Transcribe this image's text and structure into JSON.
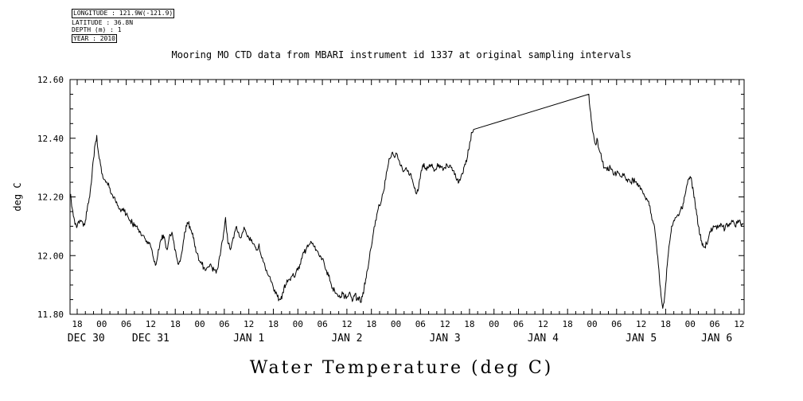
{
  "meta": {
    "longitude": "LONGITUDE : 121.9W(-121.9)",
    "latitude": "LATITUDE : 36.8N",
    "depth": "DEPTH (m) : 1",
    "year": "YEAR : 2010"
  },
  "title": "Mooring MO CTD data from MBARI instrument id 1337 at original sampling intervals",
  "xlabel": "Water Temperature (deg C)",
  "chart_data": {
    "type": "line",
    "title": "Mooring MO CTD data from MBARI instrument id 1337 at original sampling intervals",
    "ylabel": "deg C",
    "xlabel": "Water Temperature (deg C)",
    "x_unit": "hours since DEC 30 00:00",
    "xlim": [
      16.25,
      181.2
    ],
    "ylim": [
      11.8,
      12.6
    ],
    "y_minor_step": 0.05,
    "x_minor_step": 2,
    "yticks": [
      {
        "value": 11.8,
        "label": "11.80"
      },
      {
        "value": 12.0,
        "label": "12.00"
      },
      {
        "value": 12.2,
        "label": "12.20"
      },
      {
        "value": 12.4,
        "label": "12.40"
      },
      {
        "value": 12.6,
        "label": "12.60"
      }
    ],
    "xticks": [
      {
        "hour": 18,
        "label": "18"
      },
      {
        "hour": 24,
        "label": "00"
      },
      {
        "hour": 30,
        "label": "06"
      },
      {
        "hour": 36,
        "label": "12"
      },
      {
        "hour": 42,
        "label": "18"
      },
      {
        "hour": 48,
        "label": "00"
      },
      {
        "hour": 54,
        "label": "06"
      },
      {
        "hour": 60,
        "label": "12"
      },
      {
        "hour": 66,
        "label": "18"
      },
      {
        "hour": 72,
        "label": "00"
      },
      {
        "hour": 78,
        "label": "06"
      },
      {
        "hour": 84,
        "label": "12"
      },
      {
        "hour": 90,
        "label": "18"
      },
      {
        "hour": 96,
        "label": "00"
      },
      {
        "hour": 102,
        "label": "06"
      },
      {
        "hour": 108,
        "label": "12"
      },
      {
        "hour": 114,
        "label": "18"
      },
      {
        "hour": 120,
        "label": "00"
      },
      {
        "hour": 126,
        "label": "06"
      },
      {
        "hour": 132,
        "label": "12"
      },
      {
        "hour": 138,
        "label": "18"
      },
      {
        "hour": 144,
        "label": "00"
      },
      {
        "hour": 150,
        "label": "06"
      },
      {
        "hour": 156,
        "label": "12"
      },
      {
        "hour": 162,
        "label": "18"
      },
      {
        "hour": 168,
        "label": "00"
      },
      {
        "hour": 174,
        "label": "06"
      },
      {
        "hour": 180,
        "label": "12"
      }
    ],
    "date_labels": [
      {
        "hour": 20.2,
        "label": "DEC 30"
      },
      {
        "hour": 36,
        "label": "DEC 31"
      },
      {
        "hour": 60,
        "label": "JAN 1"
      },
      {
        "hour": 84,
        "label": "JAN 2"
      },
      {
        "hour": 108,
        "label": "JAN 3"
      },
      {
        "hour": 132,
        "label": "JAN 4"
      },
      {
        "hour": 156,
        "label": "JAN 5"
      },
      {
        "hour": 174.5,
        "label": "JAN 6"
      }
    ],
    "series": {
      "name": "water-temperature",
      "units": "deg C",
      "gap": [
        115,
        143.2
      ],
      "noise_amplitude": 0.011,
      "noise_step": 0.15,
      "points": [
        [
          16.4,
          12.21
        ],
        [
          16.8,
          12.16
        ],
        [
          17.2,
          12.13
        ],
        [
          17.6,
          12.11
        ],
        [
          18,
          12.1
        ],
        [
          18.5,
          12.11
        ],
        [
          19,
          12.12
        ],
        [
          19.5,
          12.1
        ],
        [
          20,
          12.12
        ],
        [
          20.4,
          12.15
        ],
        [
          20.8,
          12.18
        ],
        [
          21.2,
          12.22
        ],
        [
          21.6,
          12.27
        ],
        [
          22,
          12.33
        ],
        [
          22.4,
          12.38
        ],
        [
          22.8,
          12.41
        ],
        [
          23.1,
          12.36
        ],
        [
          23.4,
          12.33
        ],
        [
          23.7,
          12.31
        ],
        [
          24,
          12.28
        ],
        [
          24.5,
          12.26
        ],
        [
          25,
          12.25
        ],
        [
          25.5,
          12.24
        ],
        [
          26,
          12.23
        ],
        [
          26.5,
          12.21
        ],
        [
          27,
          12.2
        ],
        [
          27.5,
          12.18
        ],
        [
          28,
          12.17
        ],
        [
          28.5,
          12.16
        ],
        [
          29,
          12.16
        ],
        [
          29.5,
          12.15
        ],
        [
          30,
          12.14
        ],
        [
          30.5,
          12.13
        ],
        [
          31,
          12.12
        ],
        [
          31.5,
          12.11
        ],
        [
          32,
          12.1
        ],
        [
          32.5,
          12.1
        ],
        [
          33,
          12.09
        ],
        [
          33.5,
          12.08
        ],
        [
          34,
          12.07
        ],
        [
          34.5,
          12.06
        ],
        [
          35,
          12.05
        ],
        [
          35.5,
          12.04
        ],
        [
          36,
          12.03
        ],
        [
          36.5,
          12.0
        ],
        [
          37,
          11.98
        ],
        [
          37.3,
          11.97
        ],
        [
          37.6,
          11.99
        ],
        [
          38,
          12.02
        ],
        [
          38.4,
          12.05
        ],
        [
          38.8,
          12.07
        ],
        [
          39.2,
          12.06
        ],
        [
          39.6,
          12.04
        ],
        [
          40,
          12.02
        ],
        [
          40.4,
          12.05
        ],
        [
          40.8,
          12.07
        ],
        [
          41.2,
          12.08
        ],
        [
          41.6,
          12.05
        ],
        [
          42,
          12.02
        ],
        [
          42.4,
          11.99
        ],
        [
          42.8,
          11.97
        ],
        [
          43.2,
          11.98
        ],
        [
          43.6,
          12.01
        ],
        [
          44,
          12.05
        ],
        [
          44.4,
          12.08
        ],
        [
          44.8,
          12.1
        ],
        [
          45.2,
          12.11
        ],
        [
          45.6,
          12.1
        ],
        [
          46,
          12.08
        ],
        [
          46.4,
          12.06
        ],
        [
          46.8,
          12.03
        ],
        [
          47.2,
          12.01
        ],
        [
          47.6,
          12.0
        ],
        [
          48,
          11.98
        ],
        [
          48.5,
          11.97
        ],
        [
          49,
          11.96
        ],
        [
          49.5,
          11.95
        ],
        [
          50,
          11.96
        ],
        [
          50.5,
          11.97
        ],
        [
          51,
          11.96
        ],
        [
          51.5,
          11.95
        ],
        [
          52,
          11.94
        ],
        [
          52.5,
          11.96
        ],
        [
          53,
          12.0
        ],
        [
          53.5,
          12.05
        ],
        [
          54,
          12.09
        ],
        [
          54.3,
          12.13
        ],
        [
          54.6,
          12.08
        ],
        [
          55,
          12.04
        ],
        [
          55.5,
          12.02
        ],
        [
          56,
          12.05
        ],
        [
          56.5,
          12.08
        ],
        [
          57,
          12.1
        ],
        [
          57.5,
          12.08
        ],
        [
          58,
          12.06
        ],
        [
          58.5,
          12.08
        ],
        [
          59,
          12.09
        ],
        [
          59.5,
          12.07
        ],
        [
          60,
          12.06
        ],
        [
          60.5,
          12.05
        ],
        [
          61,
          12.04
        ],
        [
          61.5,
          12.03
        ],
        [
          62,
          12.02
        ],
        [
          62.5,
          12.04
        ],
        [
          63,
          12.0
        ],
        [
          63.5,
          11.98
        ],
        [
          64,
          11.96
        ],
        [
          64.5,
          11.94
        ],
        [
          65,
          11.93
        ],
        [
          65.5,
          11.91
        ],
        [
          66,
          11.89
        ],
        [
          66.5,
          11.87
        ],
        [
          67,
          11.86
        ],
        [
          67.4,
          11.85
        ],
        [
          67.8,
          11.85
        ],
        [
          68.2,
          11.87
        ],
        [
          68.6,
          11.89
        ],
        [
          69,
          11.9
        ],
        [
          69.5,
          11.91
        ],
        [
          70,
          11.92
        ],
        [
          70.5,
          11.93
        ],
        [
          71,
          11.93
        ],
        [
          71.5,
          11.94
        ],
        [
          72,
          11.95
        ],
        [
          72.5,
          11.97
        ],
        [
          73,
          11.99
        ],
        [
          73.5,
          12.01
        ],
        [
          74,
          12.02
        ],
        [
          74.5,
          12.03
        ],
        [
          75,
          12.04
        ],
        [
          75.5,
          12.04
        ],
        [
          76,
          12.03
        ],
        [
          76.5,
          12.02
        ],
        [
          77,
          12.01
        ],
        [
          77.5,
          12.0
        ],
        [
          78,
          11.99
        ],
        [
          78.5,
          11.97
        ],
        [
          79,
          11.95
        ],
        [
          79.5,
          11.93
        ],
        [
          80,
          11.91
        ],
        [
          80.5,
          11.89
        ],
        [
          81,
          11.88
        ],
        [
          81.5,
          11.87
        ],
        [
          82,
          11.86
        ],
        [
          82.5,
          11.86
        ],
        [
          83,
          11.87
        ],
        [
          83.5,
          11.86
        ],
        [
          84,
          11.86
        ],
        [
          84.5,
          11.87
        ],
        [
          85,
          11.86
        ],
        [
          85.5,
          11.85
        ],
        [
          86,
          11.87
        ],
        [
          86.5,
          11.85
        ],
        [
          87,
          11.86
        ],
        [
          87.4,
          11.84
        ],
        [
          87.8,
          11.86
        ],
        [
          88.2,
          11.89
        ],
        [
          88.6,
          11.92
        ],
        [
          89,
          11.95
        ],
        [
          89.5,
          11.99
        ],
        [
          90,
          12.03
        ],
        [
          90.5,
          12.08
        ],
        [
          91,
          12.12
        ],
        [
          91.5,
          12.15
        ],
        [
          92,
          12.17
        ],
        [
          92.5,
          12.19
        ],
        [
          93,
          12.22
        ],
        [
          93.5,
          12.26
        ],
        [
          94,
          12.3
        ],
        [
          94.5,
          12.33
        ],
        [
          95,
          12.35
        ],
        [
          95.5,
          12.34
        ],
        [
          96,
          12.35
        ],
        [
          96.5,
          12.33
        ],
        [
          97,
          12.31
        ],
        [
          97.5,
          12.3
        ],
        [
          98,
          12.29
        ],
        [
          98.5,
          12.3
        ],
        [
          99,
          12.29
        ],
        [
          99.5,
          12.28
        ],
        [
          100,
          12.26
        ],
        [
          100.5,
          12.23
        ],
        [
          101,
          12.21
        ],
        [
          101.4,
          12.22
        ],
        [
          101.8,
          12.26
        ],
        [
          102.2,
          12.29
        ],
        [
          102.6,
          12.31
        ],
        [
          103,
          12.3
        ],
        [
          103.5,
          12.29
        ],
        [
          104,
          12.3
        ],
        [
          104.5,
          12.31
        ],
        [
          105,
          12.3
        ],
        [
          105.5,
          12.29
        ],
        [
          106,
          12.3
        ],
        [
          106.5,
          12.31
        ],
        [
          107,
          12.3
        ],
        [
          107.5,
          12.29
        ],
        [
          108,
          12.3
        ],
        [
          108.5,
          12.31
        ],
        [
          109,
          12.3
        ],
        [
          109.5,
          12.3
        ],
        [
          110,
          12.29
        ],
        [
          110.5,
          12.28
        ],
        [
          111,
          12.26
        ],
        [
          111.4,
          12.25
        ],
        [
          111.8,
          12.26
        ],
        [
          112.2,
          12.28
        ],
        [
          112.6,
          12.3
        ],
        [
          113,
          12.31
        ],
        [
          113.4,
          12.33
        ],
        [
          113.8,
          12.36
        ],
        [
          114.2,
          12.39
        ],
        [
          114.6,
          12.42
        ],
        [
          115,
          12.43
        ],
        [
          143.2,
          12.55
        ],
        [
          143.5,
          12.5
        ],
        [
          143.8,
          12.46
        ],
        [
          144.2,
          12.42
        ],
        [
          144.5,
          12.4
        ],
        [
          144.8,
          12.38
        ],
        [
          145.2,
          12.4
        ],
        [
          145.5,
          12.37
        ],
        [
          146,
          12.35
        ],
        [
          146.5,
          12.32
        ],
        [
          147,
          12.3
        ],
        [
          147.5,
          12.3
        ],
        [
          148,
          12.29
        ],
        [
          148.5,
          12.3
        ],
        [
          149,
          12.29
        ],
        [
          149.5,
          12.28
        ],
        [
          150,
          12.28
        ],
        [
          150.5,
          12.28
        ],
        [
          151,
          12.27
        ],
        [
          151.5,
          12.28
        ],
        [
          152,
          12.27
        ],
        [
          152.5,
          12.26
        ],
        [
          153,
          12.26
        ],
        [
          153.5,
          12.25
        ],
        [
          154,
          12.26
        ],
        [
          154.5,
          12.25
        ],
        [
          155,
          12.24
        ],
        [
          155.5,
          12.24
        ],
        [
          156,
          12.23
        ],
        [
          156.5,
          12.21
        ],
        [
          157,
          12.2
        ],
        [
          157.5,
          12.19
        ],
        [
          158,
          12.17
        ],
        [
          158.5,
          12.14
        ],
        [
          159,
          12.11
        ],
        [
          159.4,
          12.08
        ],
        [
          159.8,
          12.03
        ],
        [
          160.2,
          11.97
        ],
        [
          160.6,
          11.9
        ],
        [
          161,
          11.85
        ],
        [
          161.3,
          11.82
        ],
        [
          161.6,
          11.84
        ],
        [
          162,
          11.9
        ],
        [
          162.4,
          11.97
        ],
        [
          162.8,
          12.03
        ],
        [
          163.2,
          12.07
        ],
        [
          163.6,
          12.1
        ],
        [
          164,
          12.12
        ],
        [
          164.5,
          12.13
        ],
        [
          165,
          12.14
        ],
        [
          165.5,
          12.15
        ],
        [
          166,
          12.16
        ],
        [
          166.4,
          12.18
        ],
        [
          166.8,
          12.21
        ],
        [
          167.2,
          12.24
        ],
        [
          167.6,
          12.26
        ],
        [
          168,
          12.27
        ],
        [
          168.4,
          12.25
        ],
        [
          168.8,
          12.22
        ],
        [
          169.2,
          12.18
        ],
        [
          169.6,
          12.14
        ],
        [
          170,
          12.1
        ],
        [
          170.4,
          12.07
        ],
        [
          170.8,
          12.05
        ],
        [
          171.2,
          12.03
        ],
        [
          171.6,
          12.03
        ],
        [
          172,
          12.04
        ],
        [
          172.5,
          12.06
        ],
        [
          173,
          12.08
        ],
        [
          173.5,
          12.09
        ],
        [
          174,
          12.1
        ],
        [
          174.5,
          12.09
        ],
        [
          175,
          12.1
        ],
        [
          175.5,
          12.11
        ],
        [
          176,
          12.1
        ],
        [
          176.5,
          12.09
        ],
        [
          177,
          12.11
        ],
        [
          177.5,
          12.1
        ],
        [
          178,
          12.11
        ],
        [
          178.5,
          12.12
        ],
        [
          179,
          12.1
        ],
        [
          179.5,
          12.11
        ],
        [
          180,
          12.12
        ],
        [
          180.5,
          12.1
        ],
        [
          181,
          12.11
        ]
      ]
    }
  }
}
